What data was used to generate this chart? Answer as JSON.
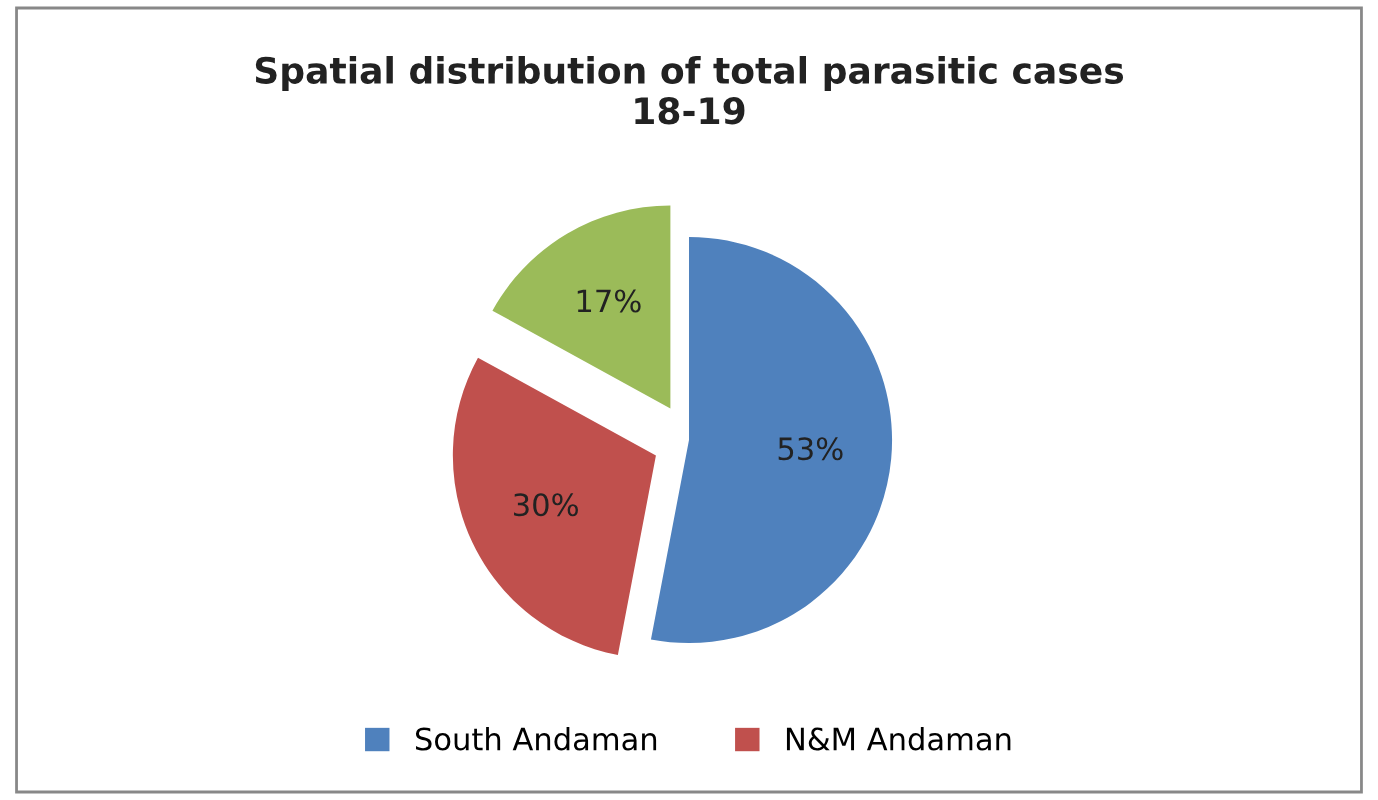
{
  "chart_data": {
    "type": "pie",
    "title": "Spatial distribution of total parasitic cases\n18-19",
    "categories": [
      "South Andaman",
      "N&M Andaman",
      null
    ],
    "values": [
      53,
      30,
      17
    ],
    "colors": [
      "#4f81bd",
      "#c0504d",
      "#9bbb59"
    ],
    "value_labels": [
      "53%",
      "30%",
      "17%"
    ],
    "legend": "bottom"
  }
}
